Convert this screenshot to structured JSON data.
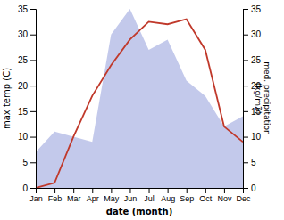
{
  "chart_data": {
    "type": "line",
    "categories": [
      "Jan",
      "Feb",
      "Mar",
      "Apr",
      "May",
      "Jun",
      "Jul",
      "Aug",
      "Sep",
      "Oct",
      "Nov",
      "Dec"
    ],
    "series": [
      {
        "type": "area",
        "axis": "y2",
        "color": "#b8bfe8",
        "values": [
          7,
          11,
          10,
          9,
          30,
          35,
          27,
          29,
          21,
          18,
          12,
          14
        ]
      },
      {
        "type": "line",
        "color": "#c0392b",
        "values": [
          0,
          1,
          10,
          18,
          24,
          29,
          32.5,
          32,
          33,
          27,
          12,
          9
        ]
      }
    ],
    "xlabel": "date (month)",
    "ylabel": "max temp (C)",
    "y2label": "med. precipitation\n(kg/m2)",
    "ylim": [
      0,
      35
    ],
    "yticks": [
      0,
      5,
      10,
      15,
      20,
      25,
      30,
      35
    ],
    "y2lim": [
      0,
      35
    ],
    "y2ticks": [
      0,
      5,
      10,
      15,
      20,
      25,
      30,
      35
    ],
    "grid": false
  }
}
